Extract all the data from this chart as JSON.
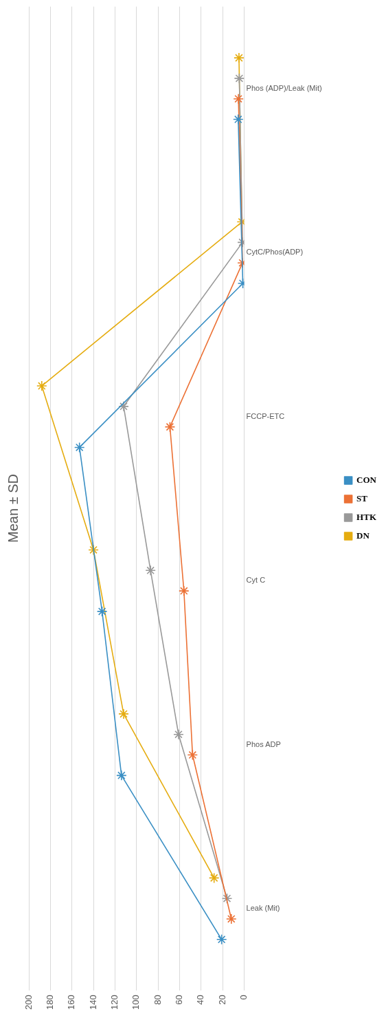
{
  "chart_data": {
    "type": "line",
    "title": "Mean ± SD",
    "orientation": "horizontal",
    "categories": [
      "Phos (ADP)/Leak (Mit)",
      "CytC/Phos(ADP)",
      "FCCP-ETC",
      "Cyt C",
      "Phos ADP",
      "Leak (Mit)"
    ],
    "series": [
      {
        "name": "CON",
        "color": "#3a8fc4",
        "values": [
          5.6,
          1.3,
          153,
          132,
          114,
          21
        ]
      },
      {
        "name": "ST",
        "color": "#ec7135",
        "values": [
          5.4,
          1.6,
          69,
          56,
          48,
          12
        ]
      },
      {
        "name": "HTK",
        "color": "#999999",
        "values": [
          4.6,
          1.6,
          112,
          87,
          61,
          16
        ]
      },
      {
        "name": "DN",
        "color": "#e5ac10",
        "values": [
          4.9,
          2.1,
          188,
          140,
          112,
          28
        ]
      }
    ],
    "xlim": [
      200,
      0
    ],
    "xticks": [
      200,
      180,
      160,
      140,
      120,
      100,
      80,
      60,
      40,
      20,
      0
    ],
    "grid": "x",
    "legend": "right",
    "marker": "cross"
  }
}
